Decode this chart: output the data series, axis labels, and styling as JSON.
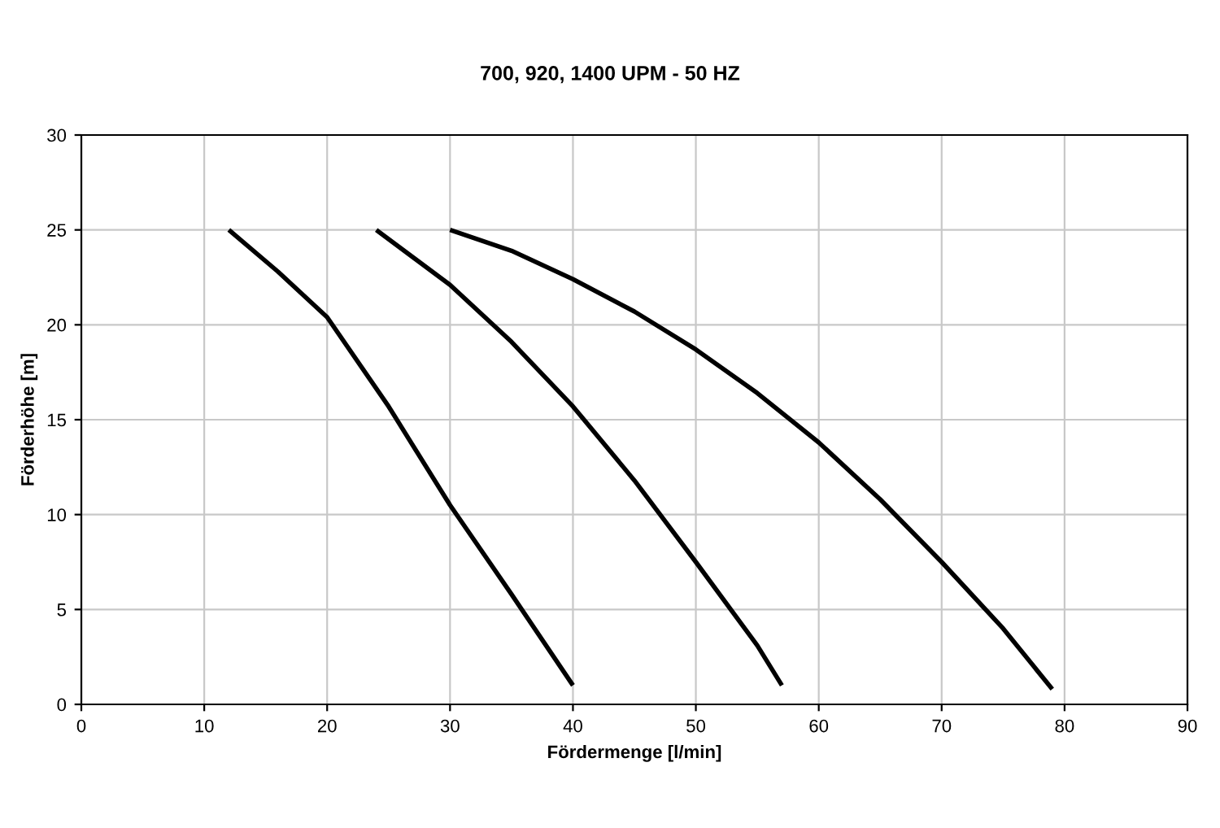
{
  "chart_data": {
    "type": "line",
    "title": "700, 920, 1400 UPM - 50 HZ",
    "xlabel": "Fördermenge [l/min]",
    "ylabel": "Förderhöhe [m]",
    "series": [
      {
        "color": "#000000",
        "x": [
          12,
          16,
          20,
          25,
          30,
          35,
          40
        ],
        "values": [
          25,
          22.8,
          20.4,
          15.7,
          10.5,
          5.8,
          1
        ]
      },
      {
        "color": "#000000",
        "x": [
          24,
          30,
          35,
          40,
          45,
          50,
          55,
          57
        ],
        "values": [
          25,
          22.1,
          19.1,
          15.7,
          11.8,
          7.5,
          3.1,
          1
        ]
      },
      {
        "color": "#000000",
        "x": [
          30,
          35,
          40,
          45,
          50,
          55,
          60,
          65,
          70,
          75,
          79
        ],
        "values": [
          25,
          23.9,
          22.4,
          20.7,
          18.7,
          16.4,
          13.8,
          10.8,
          7.5,
          4.0,
          0.8
        ]
      }
    ],
    "xlim": [
      0,
      90
    ],
    "xticks": [
      0,
      10,
      20,
      30,
      40,
      50,
      60,
      70,
      80,
      90
    ],
    "ylim": [
      0,
      30
    ],
    "yticks": [
      0,
      5,
      10,
      15,
      20,
      25,
      30
    ],
    "grid": true,
    "legend": false,
    "marker": "none",
    "line_style": "solid"
  }
}
